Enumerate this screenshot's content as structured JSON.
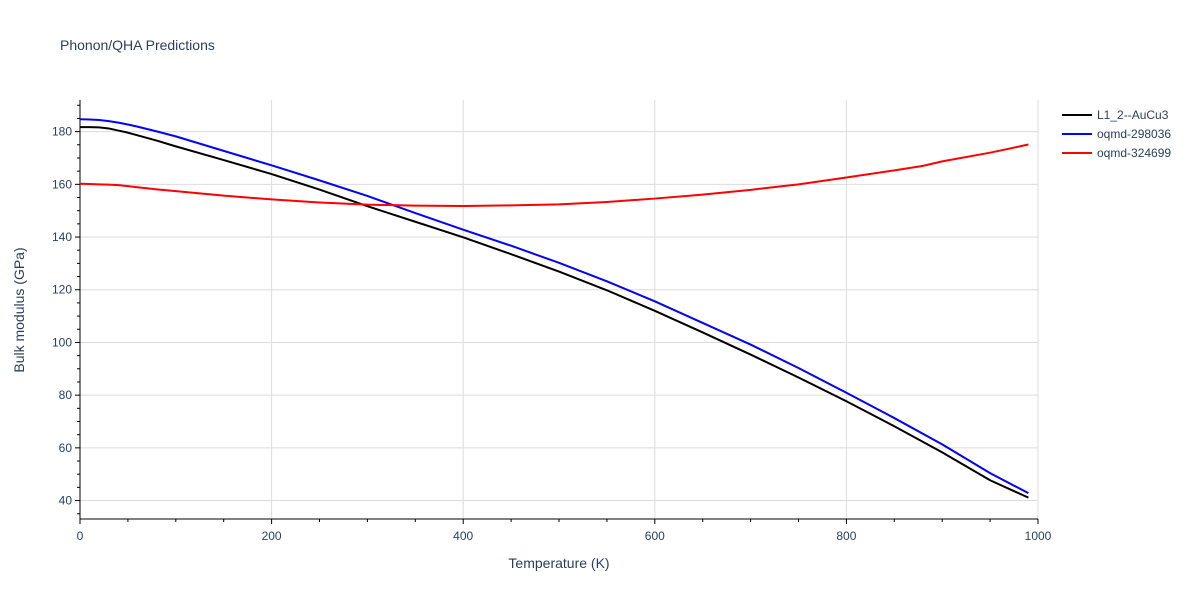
{
  "chart_data": {
    "type": "line",
    "title": "Phonon/QHA Predictions",
    "xlabel": "Temperature (K)",
    "ylabel": "Bulk modulus (GPa)",
    "xlim": [
      0,
      1000
    ],
    "ylim": [
      33,
      192
    ],
    "xticks": [
      0,
      200,
      400,
      600,
      800,
      1000
    ],
    "yticks": [
      40,
      60,
      80,
      100,
      120,
      140,
      160,
      180
    ],
    "grid": true,
    "legend_position": "top-right",
    "series": [
      {
        "name": "L1_2--AuCu3",
        "color": "#000000",
        "x": [
          0,
          10,
          20,
          30,
          40,
          50,
          60,
          80,
          100,
          150,
          200,
          250,
          300,
          350,
          400,
          450,
          500,
          550,
          600,
          650,
          700,
          750,
          800,
          850,
          900,
          950,
          990
        ],
        "y": [
          181.7,
          181.7,
          181.6,
          181.2,
          180.4,
          179.6,
          178.6,
          176.6,
          174.4,
          169.2,
          163.9,
          158.0,
          151.7,
          145.8,
          139.9,
          133.5,
          126.9,
          119.8,
          112.0,
          103.8,
          95.4,
          86.7,
          77.7,
          68.2,
          58.3,
          47.7,
          41.1
        ]
      },
      {
        "name": "oqmd-298036",
        "color": "#0000ff",
        "x": [
          0,
          10,
          20,
          30,
          40,
          50,
          60,
          80,
          100,
          150,
          200,
          250,
          300,
          350,
          400,
          450,
          500,
          550,
          600,
          650,
          700,
          750,
          800,
          850,
          900,
          950,
          990
        ],
        "y": [
          184.7,
          184.6,
          184.4,
          184.0,
          183.4,
          182.7,
          181.9,
          180.1,
          178.2,
          172.7,
          167.2,
          161.5,
          155.6,
          149.1,
          142.8,
          136.7,
          130.2,
          123.2,
          115.6,
          107.4,
          99.2,
          90.3,
          80.9,
          71.3,
          61.3,
          50.4,
          42.8
        ]
      },
      {
        "name": "oqmd-324699",
        "color": "#ff0000",
        "x": [
          0,
          10,
          20,
          30,
          40,
          50,
          60,
          80,
          100,
          150,
          200,
          250,
          300,
          350,
          400,
          450,
          500,
          550,
          600,
          650,
          700,
          750,
          800,
          850,
          880,
          900,
          950,
          990
        ],
        "y": [
          160.2,
          160.1,
          160.0,
          159.9,
          159.7,
          159.3,
          158.9,
          158.1,
          157.4,
          155.7,
          154.3,
          153.1,
          152.3,
          151.9,
          151.8,
          152.0,
          152.4,
          153.3,
          154.6,
          156.1,
          157.9,
          160.0,
          162.6,
          165.3,
          167.0,
          168.7,
          172.0,
          175.1
        ]
      }
    ]
  }
}
